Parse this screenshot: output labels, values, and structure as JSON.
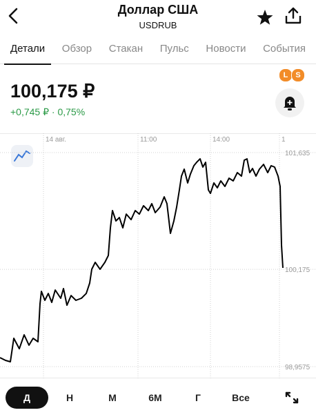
{
  "header": {
    "title": "Доллар США",
    "subtitle": "USDRUB"
  },
  "tabs": {
    "items": [
      "Детали",
      "Обзор",
      "Стакан",
      "Пульс",
      "Новости",
      "События"
    ],
    "active": 0
  },
  "quote": {
    "price": "100,175 ₽",
    "change": "+0,745 ₽ · 0,75%"
  },
  "badge": [
    "L",
    "S"
  ],
  "chart_data": {
    "type": "line",
    "color": "#000000",
    "x": [
      0,
      8,
      15,
      20,
      28,
      35,
      42,
      48,
      55,
      58,
      60,
      65,
      70,
      75,
      80,
      88,
      92,
      97,
      103,
      110,
      118,
      125,
      130,
      133,
      138,
      145,
      152,
      157,
      160,
      163,
      168,
      173,
      178,
      183,
      190,
      196,
      202,
      208,
      215,
      220,
      225,
      232,
      238,
      242,
      247,
      252,
      256,
      260,
      263,
      267,
      272,
      276,
      281,
      285,
      290,
      294,
      298,
      302,
      305,
      310,
      315,
      320,
      326,
      332,
      338,
      344,
      350,
      354,
      358,
      362,
      366,
      371,
      376,
      382,
      388,
      393,
      398,
      403,
      406,
      408,
      410
    ],
    "values": [
      99.07,
      99.036,
      99.018,
      99.312,
      99.182,
      99.355,
      99.226,
      99.312,
      99.269,
      99.744,
      99.899,
      99.787,
      99.873,
      99.761,
      99.916,
      99.813,
      99.934,
      99.726,
      99.847,
      99.787,
      99.813,
      99.873,
      100.003,
      100.176,
      100.262,
      100.176,
      100.262,
      100.348,
      100.694,
      100.91,
      100.78,
      100.823,
      100.694,
      100.866,
      100.797,
      100.91,
      100.866,
      100.97,
      100.91,
      100.996,
      100.884,
      100.953,
      101.082,
      100.996,
      100.625,
      100.78,
      100.953,
      101.169,
      101.341,
      101.428,
      101.255,
      101.367,
      101.471,
      101.514,
      101.557,
      101.454,
      101.514,
      101.169,
      101.125,
      101.255,
      101.195,
      101.281,
      101.212,
      101.315,
      101.281,
      101.385,
      101.341,
      101.54,
      101.557,
      101.385,
      101.436,
      101.341,
      101.428,
      101.488,
      101.385,
      101.471,
      101.454,
      101.341,
      101.212,
      100.478,
      100.193
    ],
    "xlim": [
      0,
      412
    ],
    "xticks": [
      {
        "value": 63,
        "label": "14 авг."
      },
      {
        "value": 200,
        "label": "11:00"
      },
      {
        "value": 305,
        "label": "14:00"
      },
      {
        "value": 405,
        "label": "1"
      }
    ],
    "ylim": [
      98.837,
      101.86
    ],
    "yticks": [
      {
        "value": 101.635,
        "label": "101,635"
      },
      {
        "value": 100.175,
        "label": "100,175"
      },
      {
        "value": 98.9575,
        "label": "98,9575"
      }
    ],
    "grid": true
  },
  "periods": {
    "items": [
      "Д",
      "Н",
      "М",
      "6М",
      "Г",
      "Все"
    ],
    "active": 0
  }
}
